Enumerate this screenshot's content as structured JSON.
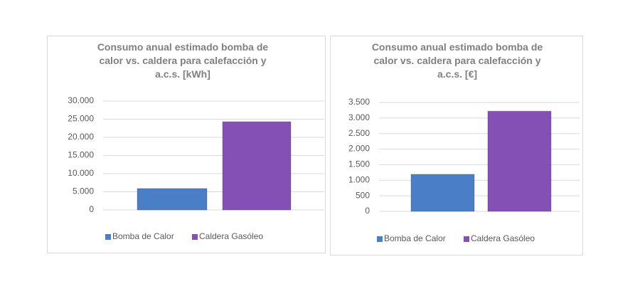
{
  "chart_data": [
    {
      "type": "bar",
      "title": "Consumo anual estimado bomba de calor vs. caldera para calefacción y a.c.s. [kWh]",
      "categories": [
        null
      ],
      "series": [
        {
          "name": "Bomba de Calor",
          "color": "#4a7fc8",
          "values": [
            5900
          ]
        },
        {
          "name": "Caldera Gasóleo",
          "color": "#8550b5",
          "values": [
            24300
          ]
        }
      ],
      "ylim": [
        0,
        30000
      ],
      "yticks": [
        0,
        {
          "value": 5000,
          "label": "5.000"
        },
        {
          "value": 10000,
          "label": "10.000"
        },
        {
          "value": 15000,
          "label": "15.000"
        },
        {
          "value": 20000,
          "label": "20.000"
        },
        {
          "value": 25000,
          "label": "25.000"
        },
        {
          "value": 30000,
          "label": "30.000"
        }
      ],
      "grid": true,
      "legend": "bottom"
    },
    {
      "type": "bar",
      "title": "Consumo anual estimado bomba de calor vs. caldera para calefacción y a.c.s. [€]",
      "categories": [
        null
      ],
      "series": [
        {
          "name": "Bomba de Calor",
          "color": "#4a7fc8",
          "values": [
            1190
          ]
        },
        {
          "name": "Caldera Gasóleo",
          "color": "#8550b5",
          "values": [
            3220
          ]
        }
      ],
      "ylim": [
        0,
        3500
      ],
      "yticks": [
        0,
        500,
        {
          "value": 1000,
          "label": "1.000"
        },
        {
          "value": 1500,
          "label": "1.500"
        },
        {
          "value": 2000,
          "label": "2.000"
        },
        {
          "value": 2500,
          "label": "2.500"
        },
        {
          "value": 3000,
          "label": "3.000"
        },
        {
          "value": 3500,
          "label": "3.500"
        }
      ],
      "grid": true,
      "legend": "bottom"
    }
  ]
}
